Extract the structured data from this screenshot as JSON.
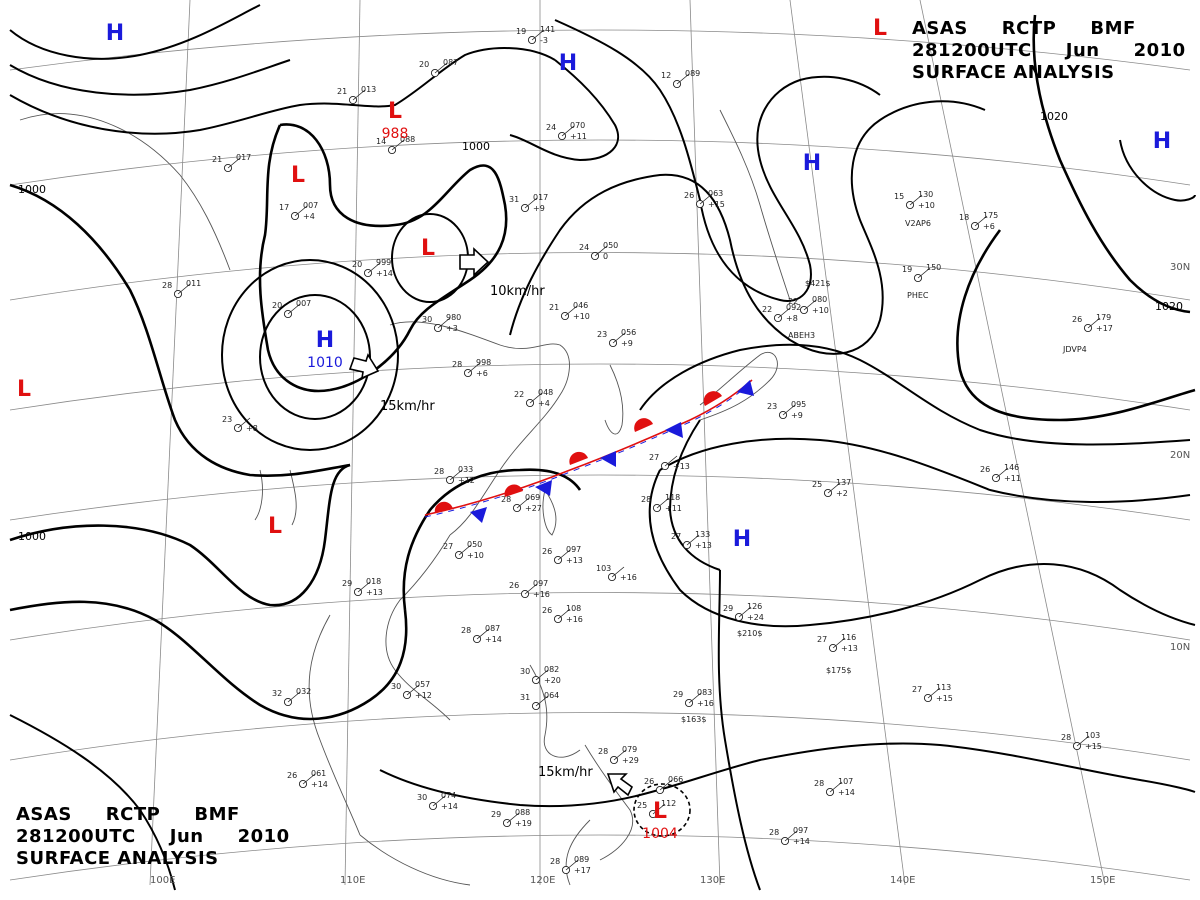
{
  "title": {
    "line1": [
      "ASAS",
      "RCTP",
      "BMF"
    ],
    "line2": [
      "281200UTC",
      "Jun",
      "2010"
    ],
    "line3": "SURFACE ANALYSIS"
  },
  "colors": {
    "high": "#1a1adb",
    "low": "#e01010",
    "isobar": "#000000",
    "grid": "#888888"
  },
  "latitude_labels": [
    "30N",
    "20N",
    "10N"
  ],
  "longitude_labels": [
    "100E",
    "110E",
    "120E",
    "130E",
    "140E",
    "150E"
  ],
  "isobar_labels": [
    "1000",
    "1000",
    "1000",
    "1020",
    "1020"
  ],
  "pressure_centers": [
    {
      "type": "H",
      "value": ""
    },
    {
      "type": "H",
      "value": ""
    },
    {
      "type": "H",
      "value": ""
    },
    {
      "type": "H",
      "value": ""
    },
    {
      "type": "H",
      "value": "1010"
    },
    {
      "type": "H",
      "value": ""
    },
    {
      "type": "L",
      "value": ""
    },
    {
      "type": "L",
      "value": ""
    },
    {
      "type": "L",
      "value": "988"
    },
    {
      "type": "L",
      "value": ""
    },
    {
      "type": "L",
      "value": ""
    },
    {
      "type": "L",
      "value": ""
    },
    {
      "type": "L",
      "value": "1004"
    }
  ],
  "motion_labels": [
    "10km/hr",
    "15km/hr",
    "15km/hr"
  ],
  "station_data": [
    {
      "temp": "19",
      "pres": "141",
      "tend": "-3"
    },
    {
      "temp": "20",
      "pres": "087",
      "tend": ""
    },
    {
      "temp": "12",
      "pres": "089",
      "tend": ""
    },
    {
      "temp": "21",
      "pres": "013",
      "tend": ""
    },
    {
      "temp": "14",
      "pres": "088",
      "tend": ""
    },
    {
      "temp": "24",
      "pres": "070",
      "tend": "+11"
    },
    {
      "temp": "21",
      "pres": "017",
      "tend": ""
    },
    {
      "temp": "31",
      "pres": "017",
      "tend": "+9"
    },
    {
      "temp": "17",
      "pres": "007",
      "tend": "+4"
    },
    {
      "temp": "26",
      "pres": "063",
      "tend": "+15"
    },
    {
      "temp": "24",
      "pres": "050",
      "tend": "0"
    },
    {
      "temp": "20",
      "pres": "999",
      "tend": "+14"
    },
    {
      "temp": "28",
      "pres": "011",
      "tend": ""
    },
    {
      "temp": "20",
      "pres": "007",
      "tend": ""
    },
    {
      "temp": "30",
      "pres": "980",
      "tend": "+3"
    },
    {
      "temp": "21",
      "pres": "046",
      "tend": "+10"
    },
    {
      "temp": "23",
      "pres": "056",
      "tend": "+9"
    },
    {
      "temp": "28",
      "pres": "998",
      "tend": "+6"
    },
    {
      "temp": "22",
      "pres": "048",
      "tend": "+4"
    },
    {
      "temp": "15",
      "pres": "130",
      "tend": "+10"
    },
    {
      "temp": "19",
      "pres": "150",
      "tend": ""
    },
    {
      "temp": "18",
      "pres": "175",
      "tend": "+6"
    },
    {
      "temp": "22",
      "pres": "092",
      "tend": "+8"
    },
    {
      "temp": "22",
      "pres": "080",
      "tend": "+10"
    },
    {
      "temp": "26",
      "pres": "179",
      "tend": "+17"
    },
    {
      "temp": "23",
      "pres": "095",
      "tend": "+9"
    },
    {
      "temp": "27",
      "pres": "",
      "tend": "+13"
    },
    {
      "temp": "23",
      "pres": "",
      "tend": "+8"
    },
    {
      "temp": "28",
      "pres": "033",
      "tend": "+12"
    },
    {
      "temp": "28",
      "pres": "069",
      "tend": "+27"
    },
    {
      "temp": "27",
      "pres": "050",
      "tend": "+10"
    },
    {
      "temp": "28",
      "pres": "118",
      "tend": "+11"
    },
    {
      "temp": "27",
      "pres": "133",
      "tend": "+13"
    },
    {
      "temp": "26",
      "pres": "146",
      "tend": "+11"
    },
    {
      "temp": "25",
      "pres": "137",
      "tend": "+2"
    },
    {
      "temp": "26",
      "pres": "097",
      "tend": "+13"
    },
    {
      "temp": "29",
      "pres": "018",
      "tend": "+13"
    },
    {
      "temp": "26",
      "pres": "097",
      "tend": "+16"
    },
    {
      "temp": "103",
      "pres": "",
      "tend": "+16"
    },
    {
      "temp": "26",
      "pres": "108",
      "tend": "+16"
    },
    {
      "temp": "28",
      "pres": "087",
      "tend": "+14"
    },
    {
      "temp": "29",
      "pres": "126",
      "tend": "+24"
    },
    {
      "temp": "27",
      "pres": "116",
      "tend": "+13"
    },
    {
      "temp": "30",
      "pres": "082",
      "tend": "+20"
    },
    {
      "temp": "30",
      "pres": "057",
      "tend": "+12"
    },
    {
      "temp": "32",
      "pres": "032",
      "tend": ""
    },
    {
      "temp": "31",
      "pres": "064",
      "tend": ""
    },
    {
      "temp": "29",
      "pres": "083",
      "tend": "+16"
    },
    {
      "temp": "27",
      "pres": "113",
      "tend": "+15"
    },
    {
      "temp": "28",
      "pres": "103",
      "tend": "+15"
    },
    {
      "temp": "28",
      "pres": "079",
      "tend": "+29"
    },
    {
      "temp": "26",
      "pres": "061",
      "tend": "+14"
    },
    {
      "temp": "30",
      "pres": "074",
      "tend": "+14"
    },
    {
      "temp": "29",
      "pres": "088",
      "tend": "+19"
    },
    {
      "temp": "26",
      "pres": "066",
      "tend": ""
    },
    {
      "temp": "28",
      "pres": "107",
      "tend": "+14"
    },
    {
      "temp": "28",
      "pres": "097",
      "tend": "+14"
    },
    {
      "temp": "28",
      "pres": "089",
      "tend": "+17"
    },
    {
      "temp": "25",
      "pres": "112",
      "tend": ""
    }
  ],
  "station_codes": [
    "V2AP6",
    "JDVP4",
    "PHEC",
    "ABEH3",
    "$421$",
    "$210$",
    "$175$",
    "$163$"
  ]
}
